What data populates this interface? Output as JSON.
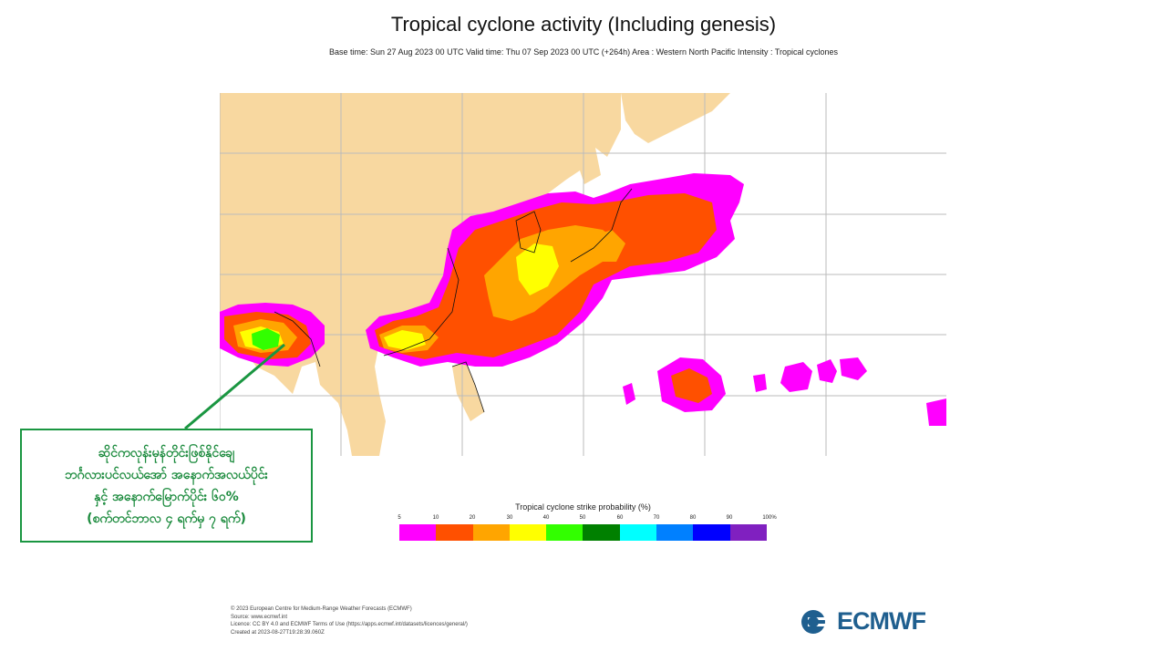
{
  "title": "Tropical cyclone activity (Including genesis)",
  "subtitle": "Base time: Sun 27 Aug 2023 00 UTC Valid time: Thu 07 Sep 2023 00 UTC (+264h) Area : Western North Pacific Intensity : Tropical cyclones",
  "annotation": {
    "lines": [
      "ဆိုင်ကလုန်းမုန်တိုင်းဖြစ်နိုင်ချေ",
      "ဘင်္ဂလားပင်လယ်အော် အနောက်အလယ်ပိုင်း",
      "နှင့် အနောက်မြောက်ပိုင်း ၆၀%",
      "(စက်တင်ဘာလ ၄ ရက်မှ ၇ ရက်)"
    ]
  },
  "legend": {
    "title": "Tropical cyclone strike probability (%)",
    "ticks": [
      "5",
      "10",
      "20",
      "30",
      "40",
      "50",
      "60",
      "70",
      "80",
      "90",
      "100%"
    ],
    "colors": [
      "#ff00ff",
      "#ff5000",
      "#ffa500",
      "#ffff00",
      "#32ff00",
      "#008000",
      "#00ffff",
      "#0080ff",
      "#0000ff",
      "#8020c0"
    ]
  },
  "map_colors": {
    "land": "#f8d8a0",
    "sea": "#ffffff",
    "grid": "#bbbbbb",
    "coast": "#111111"
  },
  "footer": {
    "lines": [
      "© 2023 European Centre for Medium-Range Weather Forecasts (ECMWF)",
      "Source: www.ecmwf.int",
      "Licence: CC BY 4.0 and ECMWF Terms of Use (https://apps.ecmwf.int/datasets/licences/general/)",
      "Created at 2023-08-27T19:28:39.060Z"
    ]
  },
  "logo": {
    "text": "ECMWF",
    "color": "#1f5f8f"
  }
}
